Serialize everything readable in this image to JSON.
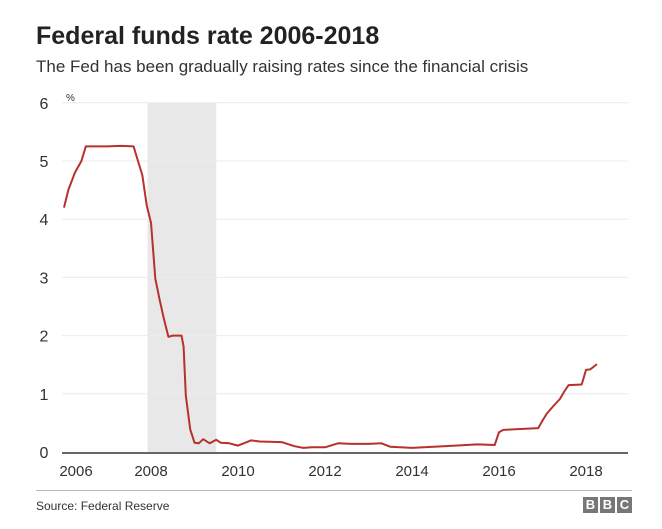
{
  "title": "Federal funds rate 2006-2018",
  "subtitle": "The Fed has been gradually raising rates since the financial crisis",
  "source": "Source: Federal Reserve",
  "logo": "BBC",
  "chart_data": {
    "type": "line",
    "ylabel": "%",
    "ylim": [
      0,
      6
    ],
    "xlim": [
      2006,
      2019
    ],
    "yticks": [
      "0",
      "1",
      "2",
      "3",
      "4",
      "5",
      "6"
    ],
    "xticks": [
      "2006",
      "2008",
      "2010",
      "2012",
      "2014",
      "2016",
      "2018"
    ],
    "grid": true,
    "line_color": "#b7312c",
    "shaded_period": {
      "start": 2007.92,
      "end": 2009.5,
      "color": "#e8e8e8"
    },
    "x": [
      2006.0,
      2006.1,
      2006.25,
      2006.4,
      2006.5,
      2006.7,
      2007.0,
      2007.3,
      2007.6,
      2007.7,
      2007.8,
      2007.9,
      2008.0,
      2008.1,
      2008.2,
      2008.3,
      2008.4,
      2008.5,
      2008.7,
      2008.75,
      2008.8,
      2008.9,
      2009.0,
      2009.1,
      2009.2,
      2009.35,
      2009.5,
      2009.6,
      2009.8,
      2010.0,
      2010.3,
      2010.5,
      2011.0,
      2011.3,
      2011.5,
      2011.7,
      2012.0,
      2012.3,
      2012.6,
      2013.0,
      2013.3,
      2013.5,
      2014.0,
      2014.5,
      2015.0,
      2015.5,
      2015.9,
      2016.0,
      2016.1,
      2016.9,
      2017.0,
      2017.1,
      2017.25,
      2017.4,
      2017.5,
      2017.6,
      2017.9,
      2018.0,
      2018.1,
      2018.25
    ],
    "values": [
      4.2,
      4.5,
      4.8,
      5.0,
      5.25,
      5.25,
      5.25,
      5.26,
      5.25,
      5.0,
      4.76,
      4.24,
      3.94,
      2.98,
      2.61,
      2.28,
      1.98,
      2.0,
      2.0,
      1.81,
      0.97,
      0.39,
      0.16,
      0.15,
      0.22,
      0.15,
      0.21,
      0.16,
      0.15,
      0.11,
      0.2,
      0.18,
      0.17,
      0.1,
      0.07,
      0.08,
      0.08,
      0.15,
      0.14,
      0.14,
      0.15,
      0.09,
      0.07,
      0.09,
      0.11,
      0.13,
      0.12,
      0.34,
      0.38,
      0.41,
      0.54,
      0.66,
      0.79,
      0.91,
      1.04,
      1.15,
      1.16,
      1.41,
      1.42,
      1.51
    ]
  }
}
